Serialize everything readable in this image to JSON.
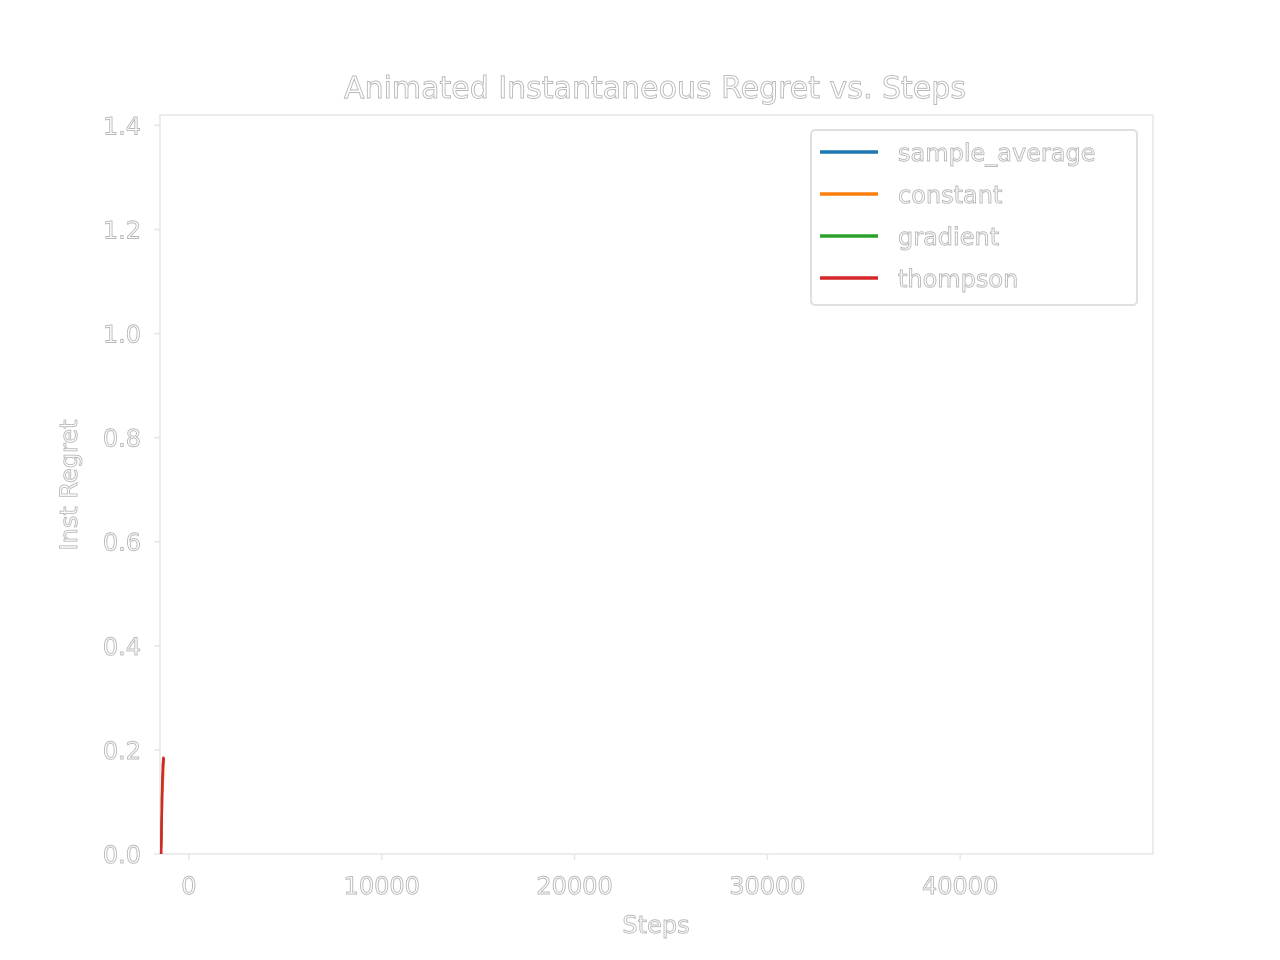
{
  "chart_data": {
    "type": "line",
    "title": "Animated Instantaneous Regret vs. Steps",
    "xlabel": "Steps",
    "ylabel": "Inst Regret",
    "xlim": [
      -1500,
      50000
    ],
    "ylim": [
      0,
      1.42
    ],
    "xticks": [
      0,
      10000,
      20000,
      30000,
      40000
    ],
    "xtick_labels": [
      "0",
      "10000",
      "20000",
      "30000",
      "40000"
    ],
    "yticks": [
      0.0,
      0.2,
      0.4,
      0.6,
      0.8,
      1.0,
      1.2,
      1.4
    ],
    "ytick_labels": [
      "0.0",
      "0.2",
      "0.4",
      "0.6",
      "0.8",
      "1.0",
      "1.2",
      "1.4"
    ],
    "grid": false,
    "legend_position": "top-right",
    "series": [
      {
        "name": "sample_average",
        "color": "#1f77b4",
        "x": [
          0,
          20,
          40,
          60,
          80,
          100
        ],
        "y": [
          0.0,
          0.08,
          0.12,
          0.15,
          0.17,
          0.18
        ]
      },
      {
        "name": "constant",
        "color": "#ff7f0e",
        "x": [
          0,
          20,
          40,
          60,
          80,
          100
        ],
        "y": [
          0.0,
          0.07,
          0.11,
          0.14,
          0.17,
          0.18
        ]
      },
      {
        "name": "gradient",
        "color": "#2ca02c",
        "x": [
          0,
          20,
          40,
          60,
          80,
          100
        ],
        "y": [
          0.0,
          0.09,
          0.14,
          0.17,
          0.18,
          0.185
        ]
      },
      {
        "name": "thompson",
        "color": "#d62728",
        "x": [
          0,
          20,
          40,
          60,
          80,
          100
        ],
        "y": [
          0.0,
          0.08,
          0.13,
          0.17,
          0.185,
          0.18
        ]
      }
    ]
  }
}
